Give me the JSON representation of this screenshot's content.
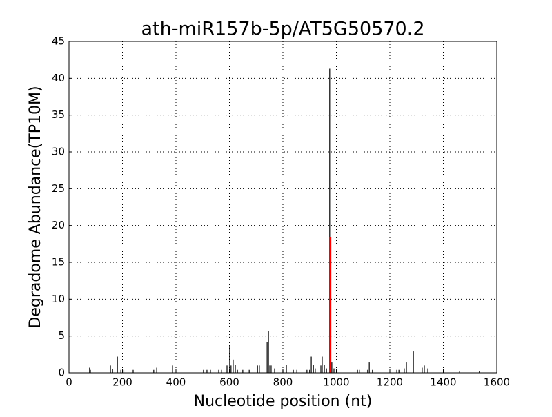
{
  "chart_data": {
    "type": "stem",
    "title": "ath-miR157b-5p/AT5G50570.2",
    "x_label": "Nucleotide position (nt)",
    "y_label": "Degradome Abundance(TP10M)",
    "xlim": [
      0,
      1600
    ],
    "xticks": [
      0,
      200,
      400,
      600,
      800,
      1000,
      1200,
      1400,
      1600
    ],
    "ylim": [
      0,
      45
    ],
    "yticks": [
      0,
      5,
      10,
      15,
      20,
      25,
      30,
      35,
      40,
      45
    ],
    "grid": true,
    "series": [
      {
        "color": "#000000",
        "x": [
          77,
          80,
          155,
          163,
          181,
          194,
          205,
          240,
          317,
          328,
          387,
          503,
          516,
          529,
          560,
          570,
          591,
          601,
          606,
          614,
          622,
          630,
          650,
          674,
          705,
          712,
          741,
          746,
          751,
          756,
          769,
          800,
          813,
          839,
          852,
          890,
          900,
          906,
          914,
          921,
          942,
          947,
          955,
          963,
          975,
          983,
          991,
          1079,
          1086,
          1117,
          1123,
          1135,
          1226,
          1234,
          1254,
          1262,
          1288,
          1321,
          1329,
          1342,
          1461,
          1535
        ],
        "values": [
          0.7,
          0.4,
          1.0,
          0.5,
          2.2,
          0.4,
          0.4,
          0.4,
          0.4,
          0.7,
          1.0,
          0.4,
          0.4,
          0.4,
          0.4,
          0.4,
          1.0,
          3.8,
          1.0,
          1.8,
          1.1,
          0.4,
          0.4,
          0.4,
          1.0,
          1.0,
          4.2,
          5.7,
          1.0,
          1.0,
          0.6,
          0.4,
          1.1,
          0.4,
          0.4,
          0.4,
          0.4,
          2.2,
          1.1,
          0.6,
          1.0,
          2.2,
          1.1,
          0.6,
          41.3,
          1.4,
          0.6,
          0.4,
          0.4,
          0.4,
          1.4,
          0.4,
          0.4,
          0.4,
          0.6,
          1.4,
          2.9,
          0.7,
          1.0,
          0.6,
          0.2,
          0.2
        ]
      },
      {
        "color": "#ff0000",
        "x": [
          978
        ],
        "values": [
          18.4
        ]
      }
    ]
  }
}
